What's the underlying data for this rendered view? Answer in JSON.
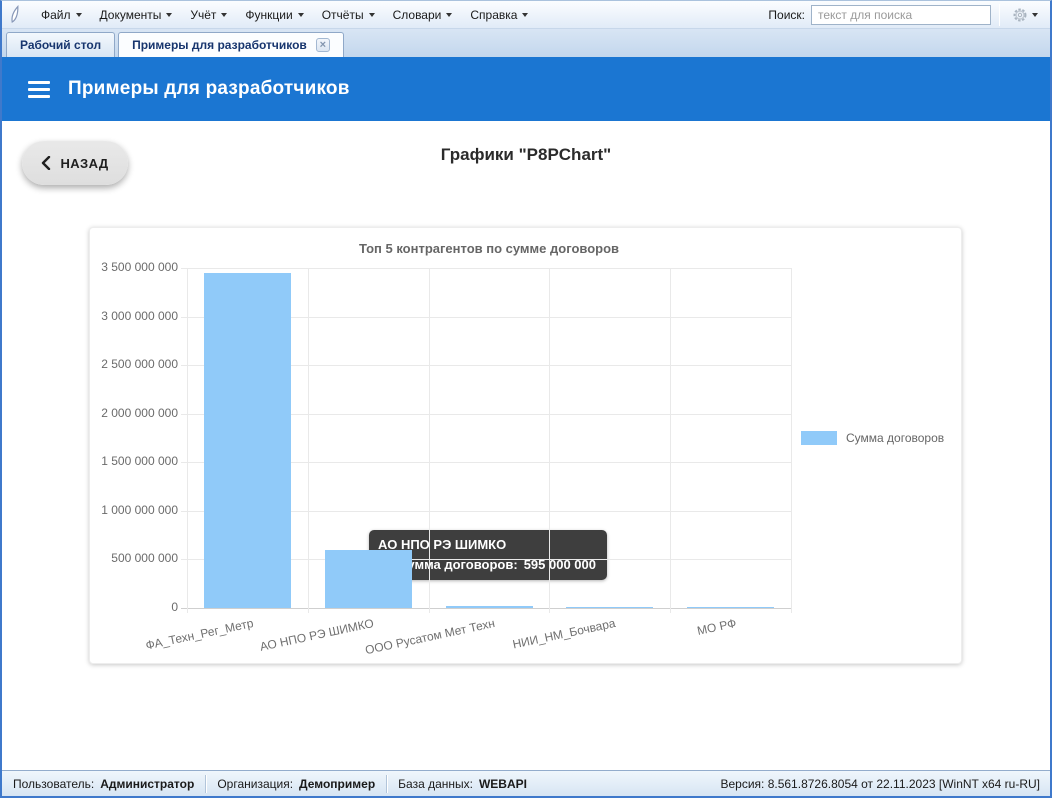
{
  "colors": {
    "header_bg": "#1b76d2",
    "bar": "#90caf9",
    "window_border": "#3f79cb",
    "tab_text": "#17356e"
  },
  "menubar": {
    "logo_icon": "app-logo",
    "items": [
      "Файл",
      "Документы",
      "Учёт",
      "Функции",
      "Отчёты",
      "Словари",
      "Справка"
    ],
    "search_label": "Поиск:",
    "search_placeholder": "текст для поиска"
  },
  "tabbar": {
    "tabs": [
      {
        "label": "Рабочий стол",
        "active": false,
        "closable": false
      },
      {
        "label": "Примеры для разработчиков",
        "active": true,
        "closable": true
      }
    ]
  },
  "header": {
    "title": "Примеры для разработчиков"
  },
  "page": {
    "back_label": "НАЗАД",
    "title": "Графики \"P8PChart\""
  },
  "chart_data": {
    "type": "bar",
    "title": "Топ 5 контрагентов по сумме договоров",
    "categories": [
      "ФА_Техн_Рег_Метр",
      "АО НПО РЭ ШИМКО",
      "ООО Русатом Мет Техн",
      "НИИ_НМ_Бочвара",
      "МО РФ"
    ],
    "series": [
      {
        "name": "Сумма договоров",
        "color": "#90caf9",
        "values": [
          3450000000,
          595000000,
          20000000,
          10000000,
          13000000
        ]
      }
    ],
    "ylim": [
      0,
      3500000000
    ],
    "ytick_labels": [
      "0",
      "500 000 000",
      "1 000 000 000",
      "1 500 000 000",
      "2 000 000 000",
      "2 500 000 000",
      "3 000 000 000",
      "3 500 000 000"
    ],
    "grid": true,
    "legend_position": "right",
    "xtick_rotation_deg": -12,
    "tooltip": {
      "title": "АО НПО РЭ ШИМКО",
      "label": "Сумма договоров:",
      "value": "595 000 000"
    }
  },
  "statusbar": {
    "user_label": "Пользователь:",
    "user_value": "Администратор",
    "org_label": "Организация:",
    "org_value": "Демопример",
    "db_label": "База данных:",
    "db_value": "WEBAPI",
    "version": "Версия: 8.561.8726.8054 от 22.11.2023 [WinNT x64 ru-RU]"
  }
}
